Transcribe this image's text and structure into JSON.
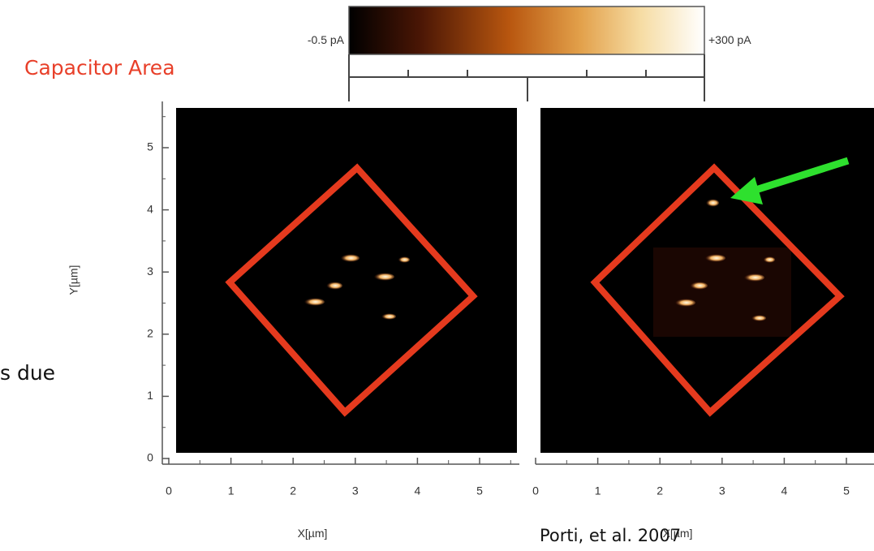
{
  "slide": {
    "heading": "Capacitor Area",
    "side_text": "s due",
    "citation": "Porti, et al. 2007"
  },
  "figure": {
    "colorbar": {
      "min_label": "-0.5 pA",
      "max_label": "+300 pA"
    },
    "y_axis": {
      "label": "Y[µm]",
      "ticks": [
        0,
        1,
        2,
        3,
        4,
        5
      ]
    },
    "panels": [
      {
        "x_axis": {
          "label": "X[µm]",
          "ticks": [
            0,
            1,
            2,
            3,
            4,
            5
          ]
        }
      },
      {
        "x_axis": {
          "label": "X[µm]",
          "ticks": [
            0,
            1,
            2,
            3,
            4,
            5
          ]
        }
      }
    ]
  }
}
